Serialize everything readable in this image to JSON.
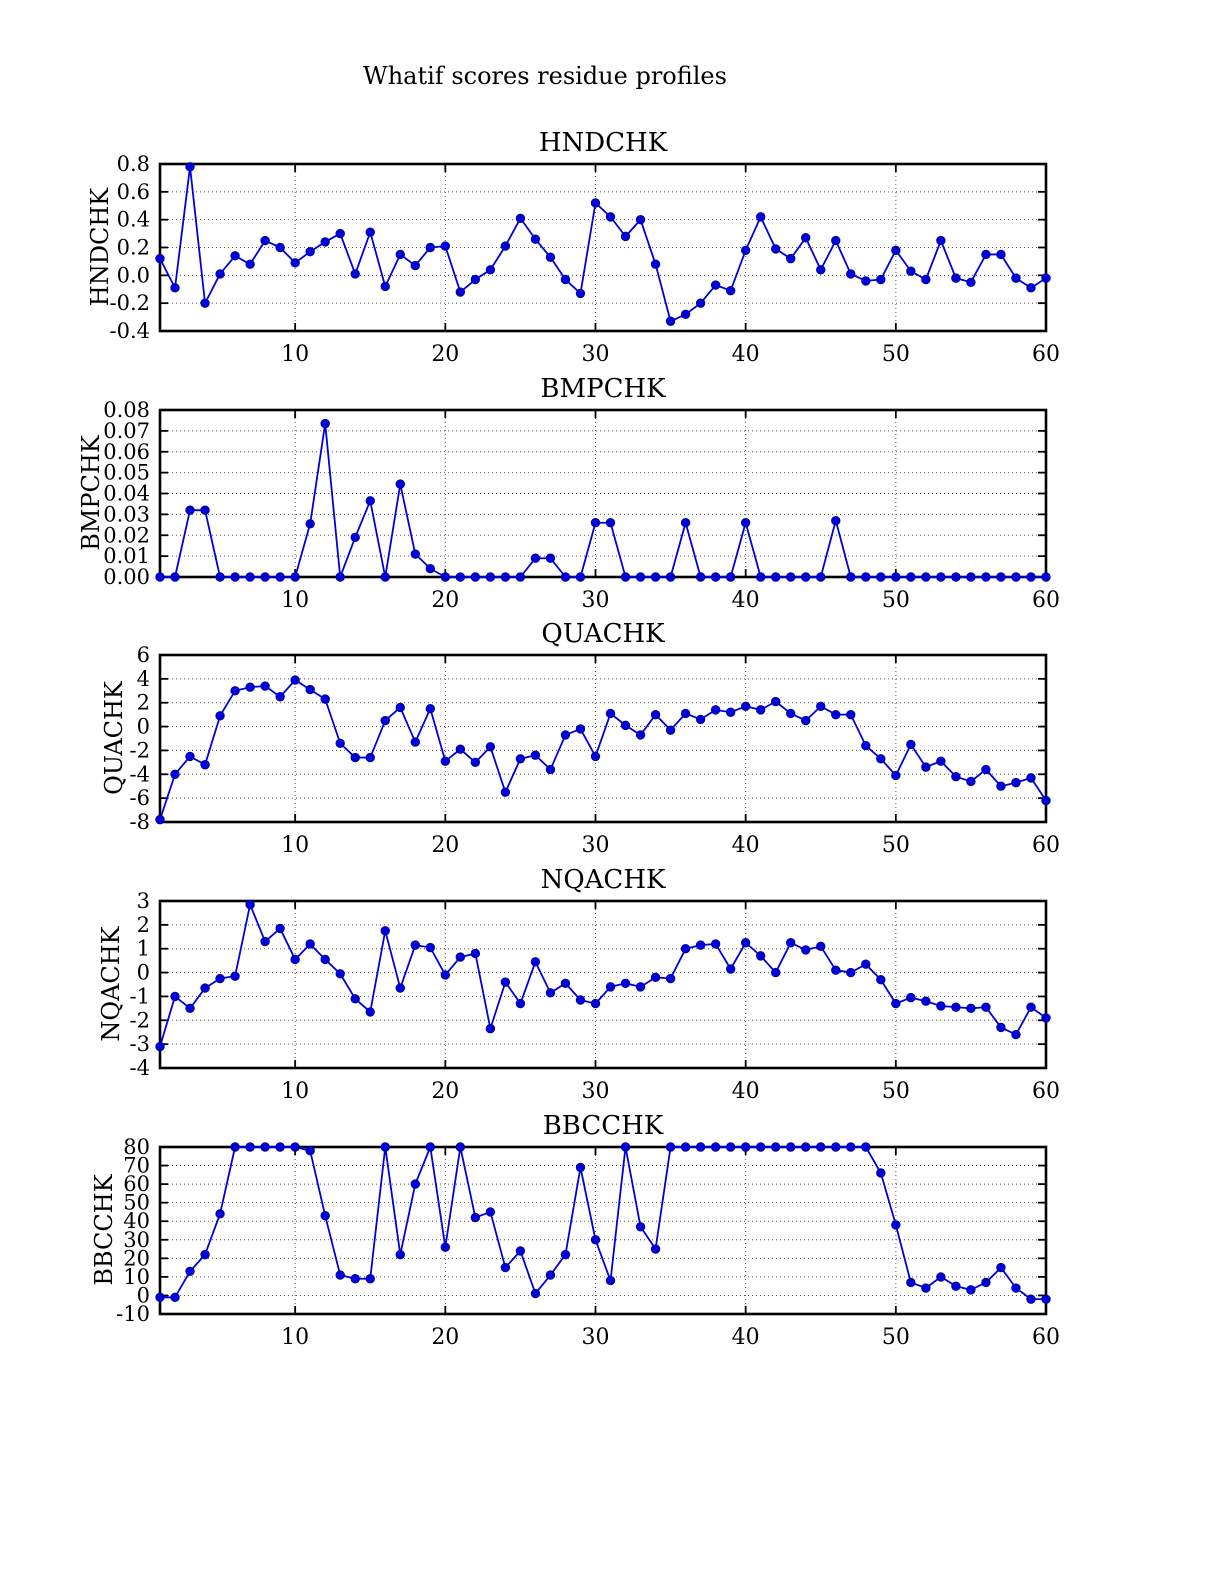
{
  "figure": {
    "title": "Whatif scores residue profiles"
  },
  "accent_color": "#0000dd",
  "chart_data": [
    {
      "type": "line",
      "title": "HNDCHK",
      "ylabel": "HNDCHK",
      "xlabel": "",
      "xlim": [
        1,
        60
      ],
      "ylim": [
        -0.4,
        0.8
      ],
      "xticks": [
        10,
        20,
        30,
        40,
        50,
        60
      ],
      "ytick_labels": [
        "0.8",
        "0.6",
        "0.4",
        "0.2",
        "0.0",
        "-0.2",
        "-0.4"
      ],
      "grid": true,
      "legend": null,
      "color": "#0000dd",
      "x_start": 1,
      "values": [
        0.12,
        -0.09,
        0.78,
        -0.2,
        0.01,
        0.14,
        0.08,
        0.25,
        0.2,
        0.09,
        0.17,
        0.24,
        0.3,
        0.01,
        0.31,
        -0.08,
        0.15,
        0.07,
        0.2,
        0.21,
        -0.12,
        -0.03,
        0.04,
        0.21,
        0.41,
        0.26,
        0.13,
        -0.03,
        -0.13,
        0.52,
        0.42,
        0.28,
        0.4,
        0.08,
        -0.33,
        -0.28,
        -0.2,
        -0.07,
        -0.11,
        0.18,
        0.42,
        0.19,
        0.12,
        0.27,
        0.04,
        0.25,
        0.01,
        -0.04,
        -0.03,
        0.18,
        0.03,
        -0.03,
        0.25,
        -0.02,
        -0.05,
        0.15,
        0.15,
        -0.02,
        -0.09,
        -0.02
      ]
    },
    {
      "type": "line",
      "title": "BMPCHK",
      "ylabel": "BMPCHK",
      "xlabel": "",
      "xlim": [
        1,
        60
      ],
      "ylim": [
        0.0,
        0.08
      ],
      "xticks": [
        10,
        20,
        30,
        40,
        50,
        60
      ],
      "ytick_labels": [
        "0.08",
        "0.07",
        "0.06",
        "0.05",
        "0.04",
        "0.03",
        "0.02",
        "0.01",
        "0.00"
      ],
      "grid": true,
      "legend": null,
      "color": "#0000dd",
      "x_start": 1,
      "values": [
        0,
        0,
        0.032,
        0.032,
        0,
        0,
        0,
        0,
        0,
        0,
        0.0255,
        0.0735,
        0,
        0.019,
        0.0365,
        0,
        0.0445,
        0.011,
        0.004,
        0,
        0,
        0,
        0,
        0,
        0,
        0.009,
        0.009,
        0,
        0,
        0.026,
        0.026,
        0,
        0,
        0,
        0,
        0.026,
        0,
        0,
        0,
        0.026,
        0,
        0,
        0,
        0,
        0,
        0.027,
        0,
        0,
        0,
        0,
        0,
        0,
        0,
        0,
        0,
        0,
        0,
        0,
        0,
        0
      ]
    },
    {
      "type": "line",
      "title": "QUACHK",
      "ylabel": "QUACHK",
      "xlabel": "",
      "xlim": [
        1,
        60
      ],
      "ylim": [
        -8,
        6
      ],
      "xticks": [
        10,
        20,
        30,
        40,
        50,
        60
      ],
      "ytick_labels": [
        "6",
        "4",
        "2",
        "0",
        "-2",
        "-4",
        "-6",
        "-8"
      ],
      "grid": true,
      "legend": null,
      "color": "#0000dd",
      "x_start": 1,
      "values": [
        -7.8,
        -4.0,
        -2.5,
        -3.2,
        0.9,
        3.0,
        3.3,
        3.4,
        2.5,
        3.9,
        3.1,
        2.3,
        -1.4,
        -2.6,
        -2.6,
        0.5,
        1.6,
        -1.3,
        1.5,
        -2.9,
        -1.9,
        -3.0,
        -1.7,
        -5.5,
        -2.7,
        -2.4,
        -3.6,
        -0.7,
        -0.2,
        -2.5,
        1.1,
        0.1,
        -0.7,
        1.0,
        -0.3,
        1.1,
        0.6,
        1.4,
        1.2,
        1.7,
        1.4,
        2.1,
        1.1,
        0.5,
        1.7,
        1.0,
        1.0,
        -1.6,
        -2.7,
        -4.1,
        -1.5,
        -3.4,
        -2.9,
        -4.2,
        -4.6,
        -3.6,
        -5.0,
        -4.7,
        -4.3,
        -6.2
      ]
    },
    {
      "type": "line",
      "title": "NQACHK",
      "ylabel": "NQACHK",
      "xlabel": "",
      "xlim": [
        1,
        60
      ],
      "ylim": [
        -4,
        3
      ],
      "xticks": [
        10,
        20,
        30,
        40,
        50,
        60
      ],
      "ytick_labels": [
        "3",
        "2",
        "1",
        "0",
        "-1",
        "-2",
        "-3",
        "-4"
      ],
      "grid": true,
      "legend": null,
      "color": "#0000dd",
      "x_start": 1,
      "values": [
        -3.1,
        -1.0,
        -1.5,
        -0.65,
        -0.25,
        -0.15,
        2.85,
        1.3,
        1.85,
        0.55,
        1.2,
        0.55,
        -0.05,
        -1.1,
        -1.65,
        1.75,
        -0.65,
        1.15,
        1.05,
        -0.1,
        0.65,
        0.8,
        -2.35,
        -0.4,
        -1.3,
        0.45,
        -0.85,
        -0.45,
        -1.15,
        -1.3,
        -0.6,
        -0.45,
        -0.6,
        -0.2,
        -0.25,
        1.0,
        1.15,
        1.2,
        0.15,
        1.25,
        0.7,
        0.0,
        1.25,
        0.95,
        1.1,
        0.1,
        0.0,
        0.35,
        -0.3,
        -1.3,
        -1.05,
        -1.2,
        -1.4,
        -1.45,
        -1.5,
        -1.45,
        -2.3,
        -2.6,
        -1.45,
        -1.9
      ]
    },
    {
      "type": "line",
      "title": "BBCCHK",
      "ylabel": "BBCCHK",
      "xlabel": "",
      "xlim": [
        1,
        60
      ],
      "ylim": [
        -10,
        80
      ],
      "xticks": [
        10,
        20,
        30,
        40,
        50,
        60
      ],
      "ytick_labels": [
        "80",
        "70",
        "60",
        "50",
        "40",
        "30",
        "20",
        "10",
        "0",
        "-10"
      ],
      "grid": true,
      "legend": null,
      "color": "#0000dd",
      "x_start": 1,
      "values": [
        -1,
        -1,
        13,
        22,
        44,
        80,
        80,
        80,
        80,
        80,
        78,
        43,
        11,
        9,
        9,
        80,
        22,
        60,
        80,
        26,
        80,
        42,
        45,
        15,
        24,
        1,
        11,
        22,
        69,
        30,
        8,
        80,
        37,
        25,
        80,
        80,
        80,
        80,
        80,
        80,
        80,
        80,
        80,
        80,
        80,
        80,
        80,
        80,
        66,
        38,
        7,
        4,
        10,
        5,
        3,
        7,
        15,
        4,
        -2,
        -2
      ]
    }
  ]
}
